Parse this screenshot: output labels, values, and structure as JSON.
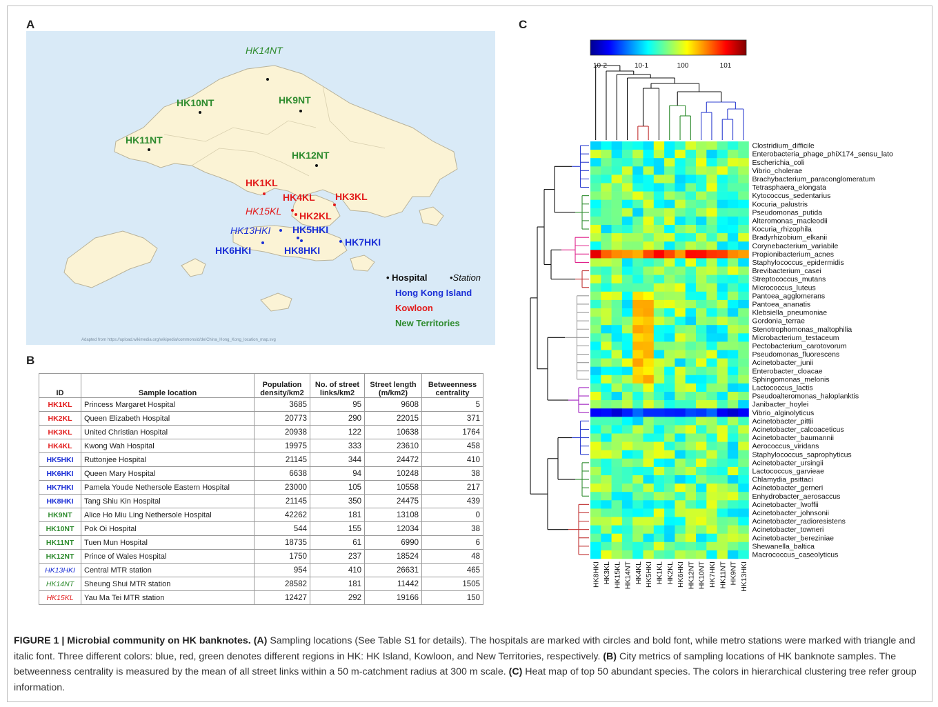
{
  "panels": {
    "a": "A",
    "b": "B",
    "c": "C"
  },
  "map": {
    "locations": [
      {
        "id": "HK14NT",
        "type": "station",
        "color": "#2e8b2e"
      },
      {
        "id": "HK10NT",
        "type": "hospital",
        "color": "#2e8b2e"
      },
      {
        "id": "HK9NT",
        "type": "hospital",
        "color": "#2e8b2e"
      },
      {
        "id": "HK11NT",
        "type": "hospital",
        "color": "#2e8b2e"
      },
      {
        "id": "HK12NT",
        "type": "hospital",
        "color": "#2e8b2e"
      },
      {
        "id": "HK1KL",
        "type": "hospital",
        "color": "#e21b1b"
      },
      {
        "id": "HK4KL",
        "type": "hospital",
        "color": "#e21b1b"
      },
      {
        "id": "HK3KL",
        "type": "hospital",
        "color": "#e21b1b"
      },
      {
        "id": "HK15KL",
        "type": "station",
        "color": "#e21b1b"
      },
      {
        "id": "HK2KL",
        "type": "hospital",
        "color": "#e21b1b"
      },
      {
        "id": "HK13HKI",
        "type": "station",
        "color": "#1b2fd6"
      },
      {
        "id": "HK5HKI",
        "type": "hospital",
        "color": "#1b2fd6"
      },
      {
        "id": "HK7HKI",
        "type": "hospital",
        "color": "#1b2fd6"
      },
      {
        "id": "HK6HKI",
        "type": "hospital",
        "color": "#1b2fd6"
      },
      {
        "id": "HK8HKI",
        "type": "hospital",
        "color": "#1b2fd6"
      }
    ],
    "legend": {
      "hospital": "• Hospital",
      "station": "•Station",
      "hki": "Hong Kong Island",
      "kl": "Kowloon",
      "nt": "New Territories"
    },
    "credit": "Adapted from https://upload.wikimedia.org/wikipedia/commons/d/de/China_Hong_Kong_location_map.svg"
  },
  "table": {
    "headers": [
      "ID",
      "Sample location",
      "Population density/km2",
      "No. of street links/km2",
      "Street length (m/km2)",
      "Betweenness centrality"
    ],
    "rows": [
      {
        "id": "HK1KL",
        "name": "Princess Margaret Hospital",
        "pop": "3685",
        "links": "95",
        "length": "9608",
        "btw": "5",
        "color": "#e21b1b",
        "station": false
      },
      {
        "id": "HK2KL",
        "name": "Queen Elizabeth Hospital",
        "pop": "20773",
        "links": "290",
        "length": "22015",
        "btw": "371",
        "color": "#e21b1b",
        "station": false
      },
      {
        "id": "HK3KL",
        "name": "United Christian Hospital",
        "pop": "20938",
        "links": "122",
        "length": "10638",
        "btw": "1764",
        "color": "#e21b1b",
        "station": false
      },
      {
        "id": "HK4KL",
        "name": "Kwong Wah Hospital",
        "pop": "19975",
        "links": "333",
        "length": "23610",
        "btw": "458",
        "color": "#e21b1b",
        "station": false
      },
      {
        "id": "HK5HKI",
        "name": "Ruttonjee Hospital",
        "pop": "21145",
        "links": "344",
        "length": "24472",
        "btw": "410",
        "color": "#1b2fd6",
        "station": false
      },
      {
        "id": "HK6HKI",
        "name": "Queen Mary Hospital",
        "pop": "6638",
        "links": "94",
        "length": "10248",
        "btw": "38",
        "color": "#1b2fd6",
        "station": false
      },
      {
        "id": "HK7HKI",
        "name": "Pamela Youde Nethersole Eastern Hospital",
        "pop": "23000",
        "links": "105",
        "length": "10558",
        "btw": "217",
        "color": "#1b2fd6",
        "station": false
      },
      {
        "id": "HK8HKI",
        "name": "Tang Shiu Kin Hospital",
        "pop": "21145",
        "links": "350",
        "length": "24475",
        "btw": "439",
        "color": "#1b2fd6",
        "station": false
      },
      {
        "id": "HK9NT",
        "name": "Alice Ho Miu Ling Nethersole Hospital",
        "pop": "42262",
        "links": "181",
        "length": "13108",
        "btw": "0",
        "color": "#2e8b2e",
        "station": false
      },
      {
        "id": "HK10NT",
        "name": "Pok Oi Hospital",
        "pop": "544",
        "links": "155",
        "length": "12034",
        "btw": "38",
        "color": "#2e8b2e",
        "station": false
      },
      {
        "id": "HK11NT",
        "name": "Tuen Mun Hospital",
        "pop": "18735",
        "links": "61",
        "length": "6990",
        "btw": "6",
        "color": "#2e8b2e",
        "station": false
      },
      {
        "id": "HK12NT",
        "name": "Prince of Wales Hospital",
        "pop": "1750",
        "links": "237",
        "length": "18524",
        "btw": "48",
        "color": "#2e8b2e",
        "station": false
      },
      {
        "id": "HK13HKI",
        "name": "Central MTR station",
        "pop": "954",
        "links": "410",
        "length": "26631",
        "btw": "465",
        "color": "#1b2fd6",
        "station": true
      },
      {
        "id": "HK14NT",
        "name": "Sheung Shui MTR station",
        "pop": "28582",
        "links": "181",
        "length": "11442",
        "btw": "1505",
        "color": "#2e8b2e",
        "station": true
      },
      {
        "id": "HK15KL",
        "name": "Yau Ma Tei MTR station",
        "pop": "12427",
        "links": "292",
        "length": "19166",
        "btw": "150",
        "color": "#e21b1b",
        "station": true
      }
    ]
  },
  "heatmap": {
    "colorbar_ticks": [
      "10-2",
      "10-1",
      "100",
      "101"
    ],
    "columns": [
      "HK8HKI",
      "HK3KL",
      "HK15KL",
      "HK14NT",
      "HK4KL",
      "HK5HKI",
      "HK1KL",
      "HK2KL",
      "HK6HKI",
      "HK12NT",
      "HK10NT",
      "HK7HKI",
      "HK11NT",
      "HK9NT",
      "HK13HKI"
    ],
    "species": [
      "Clostridium_difficile",
      "Enterobacteria_phage_phiX174_sensu_lato",
      "Escherichia_coli",
      "Vibrio_cholerae",
      "Brachybacterium_paraconglomeratum",
      "Tetrasphaera_elongata",
      "Kytococcus_sedentarius",
      "Kocuria_palustris",
      "Pseudomonas_putida",
      "Alteromonas_macleodii",
      "Kocuria_rhizophila",
      "Bradyrhizobium_elkanii",
      "Corynebacterium_variabile",
      "Propionibacterium_acnes",
      "Staphylococcus_epidermidis",
      "Brevibacterium_casei",
      "Streptococcus_mutans",
      "Micrococcus_luteus",
      "Pantoea_agglomerans",
      "Pantoea_ananatis",
      "Klebsiella_pneumoniae",
      "Gordonia_terrae",
      "Stenotrophomonas_maltophilia",
      "Microbacterium_testaceum",
      "Pectobacterium_carotovorum",
      "Pseudomonas_fluorescens",
      "Acinetobacter_junii",
      "Enterobacter_cloacae",
      "Sphingomonas_melonis",
      "Lactococcus_lactis",
      "Pseudoalteromonas_haloplanktis",
      "Janibacter_hoylei",
      "Vibrio_alginolyticus",
      "Acinetobacter_pittii",
      "Acinetobacter_calcoaceticus",
      "Acinetobacter_baumannii",
      "Aerococcus_viridans",
      "Staphylococcus_saprophyticus",
      "Acinetobacter_ursingii",
      "Lactococcus_garvieae",
      "Chlamydia_psittaci",
      "Acinetobacter_gerneri",
      "Enhydrobacter_aerosaccus",
      "Acinetobacter_lwoffii",
      "Acinetobacter_johnsonii",
      "Acinetobacter_radioresistens",
      "Acinetobacter_towneri",
      "Acinetobacter_bereziniae",
      "Shewanella_baltica",
      "Macrococcus_caseolyticus"
    ]
  },
  "caption": {
    "title": "FIGURE 1 | Microbial community on HK banknotes.",
    "a_label": "(A)",
    "a_text": " Sampling locations (See Table S1 for details). The hospitals are marked with circles and bold font, while metro stations were marked with triangle and italic font. Three different colors: blue, red, green denotes different regions in HK: HK Island, Kowloon, and New Territories, respectively. ",
    "b_label": "(B)",
    "b_text": " City metrics of sampling locations of HK banknote samples. The betweenness centrality is measured by the mean of all street links within a 50 m-catchment radius at 300 m scale. ",
    "c_label": "(C)",
    "c_text": " Heat map of top 50 abundant species. The colors in hierarchical clustering tree refer group information."
  }
}
